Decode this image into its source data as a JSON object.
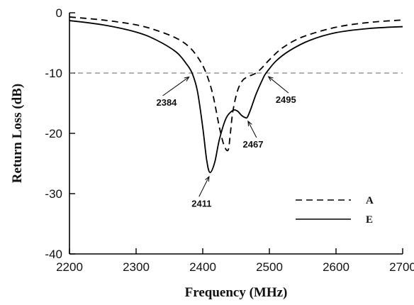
{
  "chart_data": {
    "type": "line",
    "title": "",
    "xlabel": "Frequency (MHz)",
    "ylabel": "Return Loss (dB)",
    "xlim": [
      2200,
      2700
    ],
    "ylim": [
      -40,
      0
    ],
    "x_ticks": [
      2200,
      2300,
      2400,
      2500,
      2600,
      2700
    ],
    "y_ticks": [
      0,
      -10,
      -20,
      -30,
      -40
    ],
    "grid": false,
    "reference_line": {
      "y": -10,
      "style": "dashed"
    },
    "legend_position": "bottom-right",
    "series": [
      {
        "name": "A",
        "style": "dashed",
        "x": [
          2200,
          2250,
          2300,
          2330,
          2360,
          2380,
          2395,
          2405,
          2415,
          2425,
          2432,
          2438,
          2441,
          2445,
          2452,
          2460,
          2470,
          2480,
          2490,
          2500,
          2520,
          2550,
          2600,
          2650,
          2700
        ],
        "y": [
          -0.7,
          -1.2,
          -2.0,
          -2.9,
          -4.2,
          -5.7,
          -7.8,
          -10.0,
          -13.5,
          -19.0,
          -22.0,
          -22.8,
          -20.5,
          -16.5,
          -13.0,
          -11.2,
          -10.5,
          -10.0,
          -9.0,
          -7.8,
          -5.8,
          -4.0,
          -2.4,
          -1.6,
          -1.2
        ]
      },
      {
        "name": "E",
        "style": "solid",
        "x": [
          2200,
          2250,
          2300,
          2330,
          2360,
          2375,
          2384,
          2392,
          2400,
          2406,
          2411,
          2418,
          2425,
          2435,
          2445,
          2452,
          2458,
          2464,
          2467,
          2472,
          2480,
          2490,
          2495,
          2510,
          2530,
          2560,
          2600,
          2650,
          2700
        ],
        "y": [
          -1.3,
          -2.0,
          -3.2,
          -4.5,
          -6.5,
          -8.4,
          -10.0,
          -13.0,
          -19.0,
          -24.5,
          -26.5,
          -24.8,
          -21.0,
          -17.5,
          -16.2,
          -16.3,
          -17.0,
          -17.4,
          -17.3,
          -16.0,
          -13.5,
          -11.0,
          -10.0,
          -8.0,
          -6.3,
          -4.6,
          -3.3,
          -2.6,
          -2.3
        ]
      }
    ],
    "annotations": [
      {
        "text": "2384",
        "x": 2384,
        "y": -10
      },
      {
        "text": "2411",
        "x": 2411,
        "y": -26.5
      },
      {
        "text": "2467",
        "x": 2467,
        "y": -17.4
      },
      {
        "text": "2495",
        "x": 2495,
        "y": -10
      }
    ]
  }
}
